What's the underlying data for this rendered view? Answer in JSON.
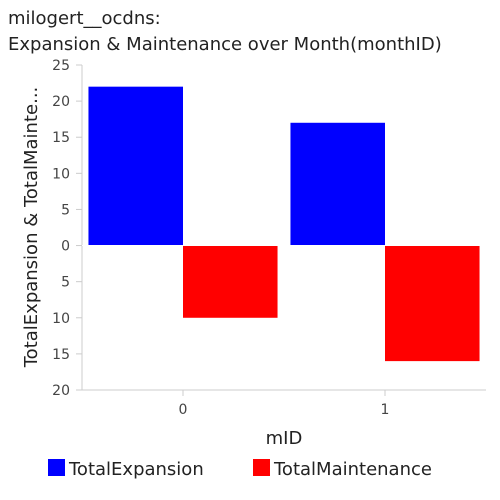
{
  "chart_data": {
    "type": "bar",
    "title_line1": "milogert__ocdns:",
    "title_line2": "Expansion & Maintenance over Month(monthID)",
    "xlabel": "mID",
    "ylabel": "TotalExpansion & TotalMainte...",
    "categories": [
      "0",
      "1"
    ],
    "series": [
      {
        "name": "TotalExpansion",
        "color": "#0000ff",
        "values": [
          22,
          17
        ]
      },
      {
        "name": "TotalMaintenance",
        "color": "#ff0000",
        "values": [
          -10,
          -16
        ]
      }
    ],
    "ylim": [
      -20,
      25
    ],
    "yticks": [
      {
        "value": 25,
        "label": "25"
      },
      {
        "value": 20,
        "label": "20"
      },
      {
        "value": 15,
        "label": "15"
      },
      {
        "value": 10,
        "label": "10"
      },
      {
        "value": 5,
        "label": "5"
      },
      {
        "value": 0,
        "label": "0"
      },
      {
        "value": -5,
        "label": "5"
      },
      {
        "value": -10,
        "label": "10"
      },
      {
        "value": -15,
        "label": "15"
      },
      {
        "value": -20,
        "label": "20"
      }
    ],
    "legend_position": "bottom",
    "grid": false
  }
}
